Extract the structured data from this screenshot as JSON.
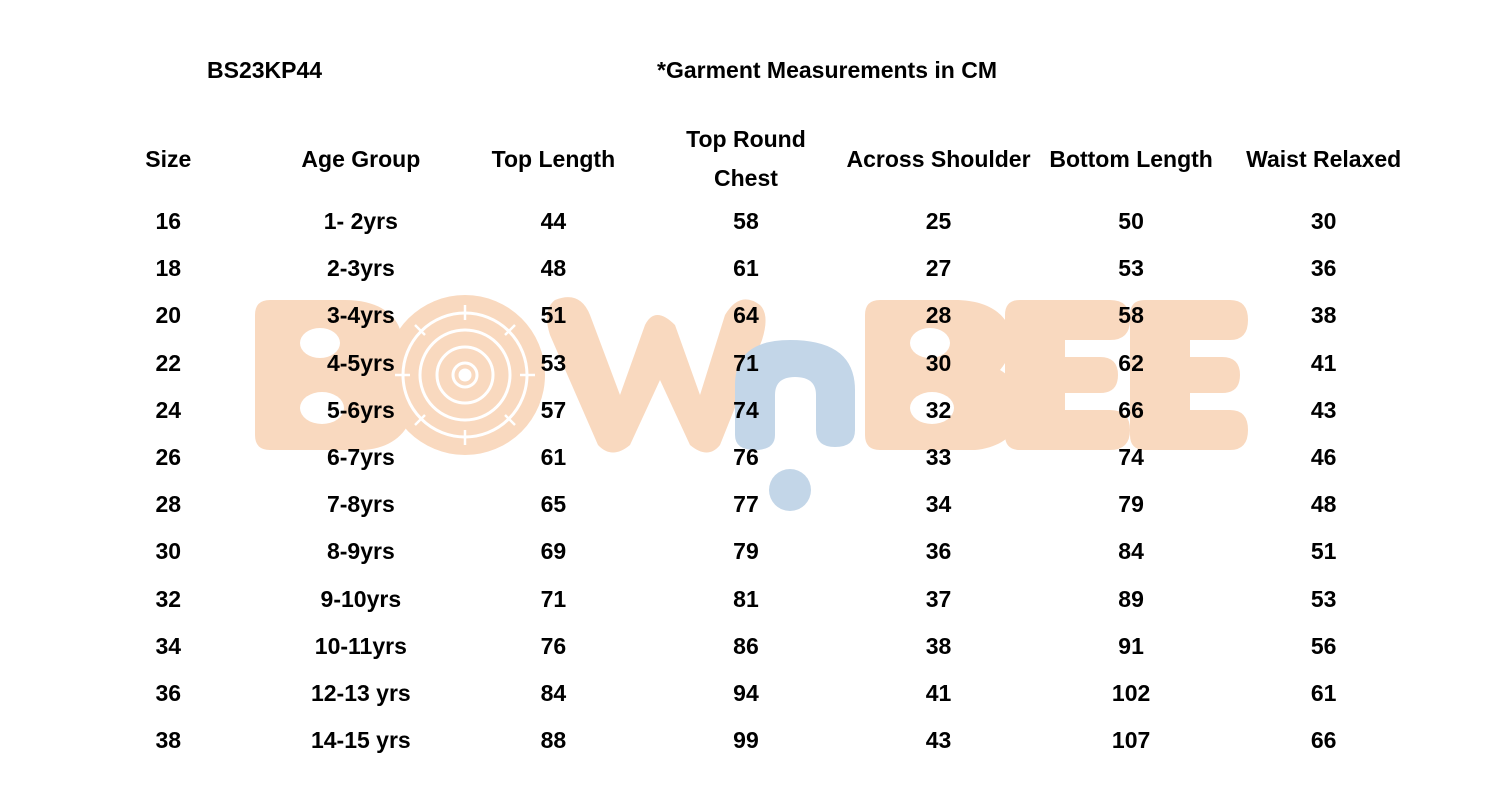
{
  "header": {
    "style_code": "BS23KP44",
    "note": "*Garment Measurements in CM"
  },
  "watermark": {
    "brand": "BOWnBEE",
    "colors": {
      "peach": "#f9d9bf",
      "blue": "#c3d6e8"
    }
  },
  "table": {
    "columns": [
      "Size",
      "Age Group",
      "Top Length",
      "Top Round Chest",
      "Across Shoulder",
      "Bottom Length",
      "Waist Relaxed"
    ],
    "rows": [
      [
        "16",
        "1- 2yrs",
        "44",
        "58",
        "25",
        "50",
        "30"
      ],
      [
        "18",
        "2-3yrs",
        "48",
        "61",
        "27",
        "53",
        "36"
      ],
      [
        "20",
        "3-4yrs",
        "51",
        "64",
        "28",
        "58",
        "38"
      ],
      [
        "22",
        "4-5yrs",
        "53",
        "71",
        "30",
        "62",
        "41"
      ],
      [
        "24",
        "5-6yrs",
        "57",
        "74",
        "32",
        "66",
        "43"
      ],
      [
        "26",
        "6-7yrs",
        "61",
        "76",
        "33",
        "74",
        "46"
      ],
      [
        "28",
        "7-8yrs",
        "65",
        "77",
        "34",
        "79",
        "48"
      ],
      [
        "30",
        "8-9yrs",
        "69",
        "79",
        "36",
        "84",
        "51"
      ],
      [
        "32",
        "9-10yrs",
        "71",
        "81",
        "37",
        "89",
        "53"
      ],
      [
        "34",
        "10-11yrs",
        "76",
        "86",
        "38",
        "91",
        "56"
      ],
      [
        "36",
        "12-13 yrs",
        "84",
        "94",
        "41",
        "102",
        "61"
      ],
      [
        "38",
        "14-15 yrs",
        "88",
        "99",
        "43",
        "107",
        "66"
      ]
    ]
  }
}
